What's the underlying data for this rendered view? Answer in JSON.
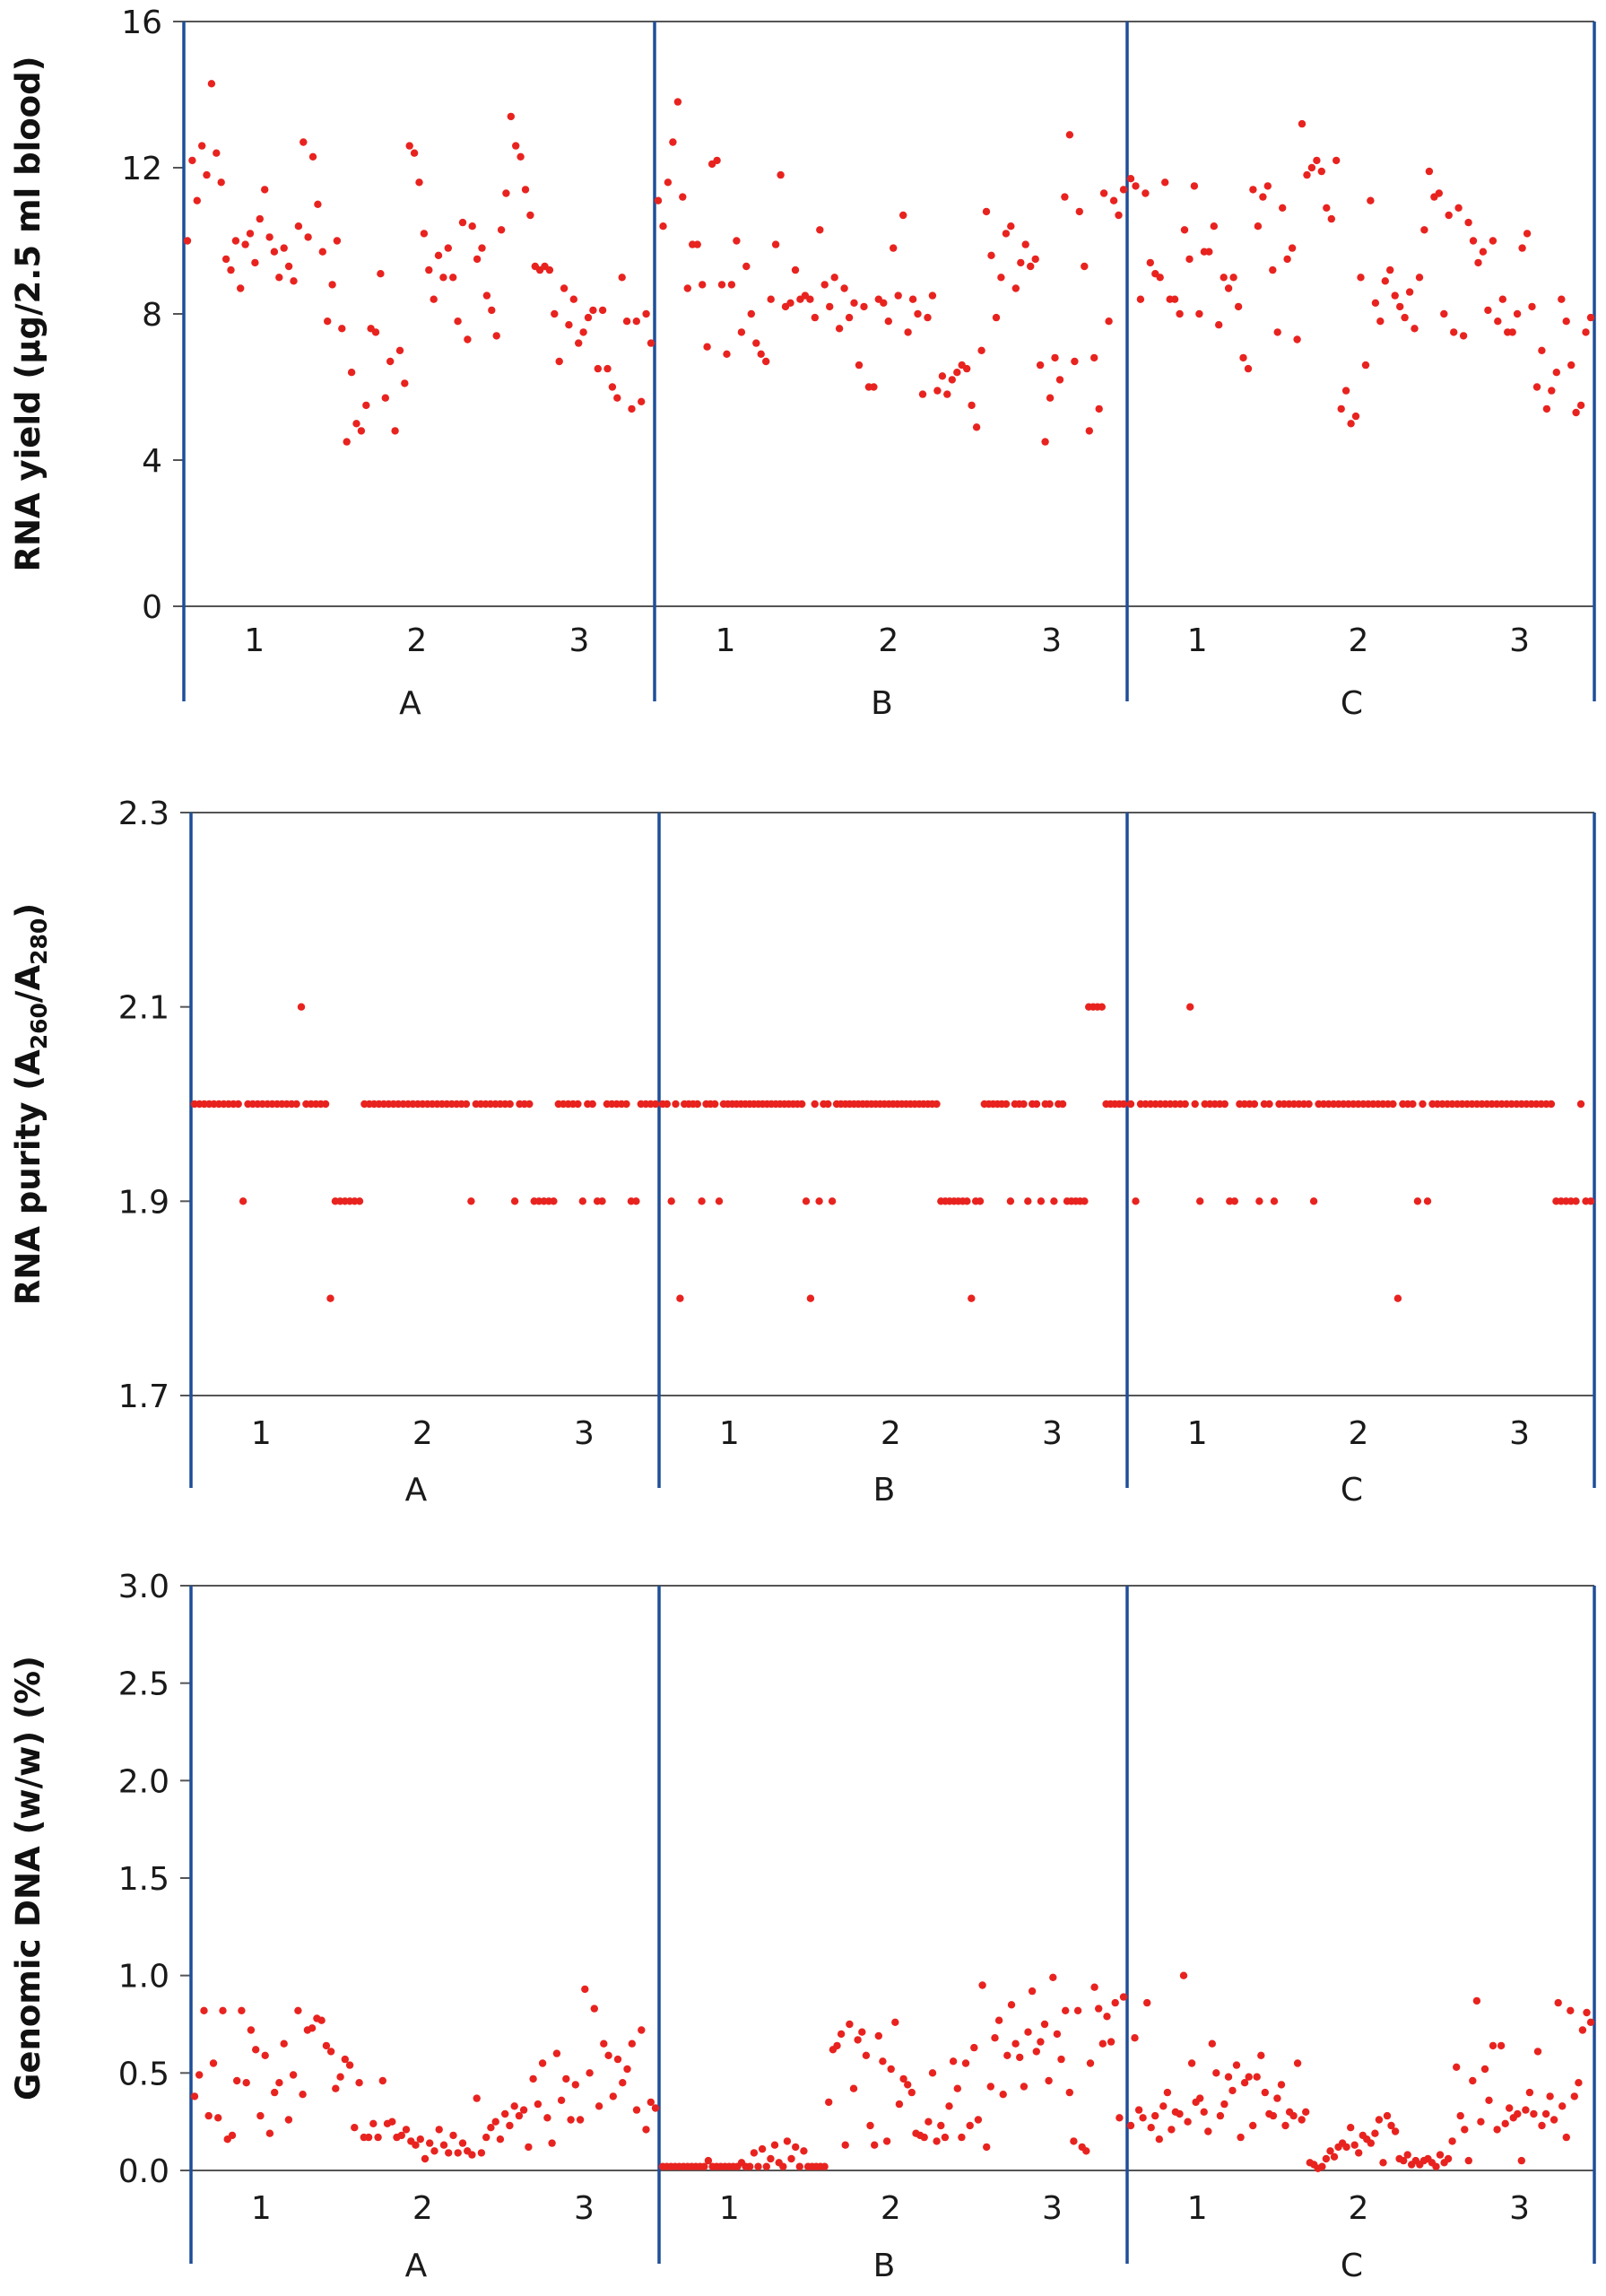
{
  "colors": {
    "point": "#e8231f",
    "divider": "#1f4e99",
    "axis": "#555555"
  },
  "chart_data": [
    {
      "type": "scatter",
      "ylabel": "RNA yield (µg/2.5 ml blood)",
      "ylim": [
        0,
        16
      ],
      "yticks": [
        "0",
        "4",
        "8",
        "12",
        "16"
      ],
      "groups": [
        "A",
        "B",
        "C"
      ],
      "subgroups": [
        "1",
        "2",
        "3"
      ],
      "grid": false,
      "series": [
        {
          "group": "A",
          "values": [
            10.0,
            12.2,
            11.1,
            12.6,
            11.8,
            14.3,
            12.4,
            11.6,
            9.5,
            9.2,
            10.0,
            8.7,
            9.9,
            10.2,
            9.4,
            10.6,
            11.4,
            10.1,
            9.7,
            9.0,
            9.8,
            9.3,
            8.9,
            10.4,
            12.7,
            10.1,
            12.3,
            11.0,
            9.7,
            7.8,
            8.8,
            10.0,
            7.6,
            4.5,
            6.4,
            5.0,
            4.8,
            5.5,
            7.6,
            7.5,
            9.1,
            5.7,
            6.7,
            4.8,
            7.0,
            6.1,
            12.6,
            12.4,
            11.6,
            10.2,
            9.2,
            8.4,
            9.6,
            9.0,
            9.8,
            9.0,
            7.8,
            10.5,
            7.3,
            10.4,
            9.5,
            9.8,
            8.5,
            8.1,
            7.4,
            10.3,
            11.3,
            13.4,
            12.6,
            12.3,
            11.4,
            10.7,
            9.3,
            9.2,
            9.3,
            9.2,
            8.0,
            6.7,
            8.7,
            7.7,
            8.4,
            7.2,
            7.5,
            7.9,
            8.1,
            6.5,
            8.1,
            6.5,
            6.0,
            5.7,
            9.0,
            7.8,
            5.4,
            7.8,
            5.6,
            8.0,
            7.2
          ]
        },
        {
          "group": "B",
          "values": [
            11.1,
            10.4,
            11.6,
            12.7,
            13.8,
            11.2,
            8.7,
            9.9,
            9.9,
            8.8,
            7.1,
            12.1,
            12.2,
            8.8,
            6.9,
            8.8,
            10.0,
            7.5,
            9.3,
            8.0,
            7.2,
            6.9,
            6.7,
            8.4,
            9.9,
            11.8,
            8.2,
            8.3,
            9.2,
            8.4,
            8.5,
            8.4,
            7.9,
            10.3,
            8.8,
            8.2,
            9.0,
            7.6,
            8.7,
            7.9,
            8.3,
            6.6,
            8.2,
            6.0,
            6.0,
            8.4,
            8.3,
            7.8,
            9.8,
            8.5,
            10.7,
            7.5,
            8.4,
            8.0,
            5.8,
            7.9,
            8.5,
            5.9,
            6.3,
            5.8,
            6.2,
            6.4,
            6.6,
            6.5,
            5.5,
            4.9,
            7.0,
            10.8,
            9.6,
            7.9,
            9.0,
            10.2,
            10.4,
            8.7,
            9.4,
            9.9,
            9.3,
            9.5,
            6.6,
            4.5,
            5.7,
            6.8,
            6.2,
            11.2,
            12.9,
            6.7,
            10.8,
            9.3,
            4.8,
            6.8,
            5.4,
            11.3,
            7.8,
            11.1,
            10.7,
            11.4
          ]
        },
        {
          "group": "C",
          "values": [
            11.7,
            11.5,
            8.4,
            11.3,
            9.4,
            9.1,
            9.0,
            11.6,
            8.4,
            8.4,
            8.0,
            10.3,
            9.5,
            11.5,
            8.0,
            9.7,
            9.7,
            10.4,
            7.7,
            9.0,
            8.7,
            9.0,
            8.2,
            6.8,
            6.5,
            11.4,
            10.4,
            11.2,
            11.5,
            9.2,
            7.5,
            10.9,
            9.5,
            9.8,
            7.3,
            13.2,
            11.8,
            12.0,
            12.2,
            11.9,
            10.9,
            10.6,
            12.2,
            5.4,
            5.9,
            5.0,
            5.2,
            9.0,
            6.6,
            11.1,
            8.3,
            7.8,
            8.9,
            9.2,
            8.5,
            8.2,
            7.9,
            8.6,
            7.6,
            9.0,
            10.3,
            11.9,
            11.2,
            11.3,
            8.0,
            10.7,
            7.5,
            10.9,
            7.4,
            10.5,
            10.0,
            9.4,
            9.7,
            8.1,
            10.0,
            7.8,
            8.4,
            7.5,
            7.5,
            8.0,
            9.8,
            10.2,
            8.2,
            6.0,
            7.0,
            5.4,
            5.9,
            6.4,
            8.4,
            7.8,
            6.6,
            5.3,
            5.5,
            7.5,
            7.9
          ]
        }
      ]
    },
    {
      "type": "scatter",
      "ylabel_main": "RNA purity (A",
      "ylabel_sub1": "260",
      "ylabel_mid": "/A",
      "ylabel_sub2": "280",
      "ylabel_end": ")",
      "ylim": [
        1.7,
        2.3
      ],
      "yticks": [
        "1.7",
        "1.9",
        "2.1",
        "2.3"
      ],
      "groups": [
        "A",
        "B",
        "C"
      ],
      "subgroups": [
        "1",
        "2",
        "3"
      ],
      "grid": false,
      "series": [
        {
          "group": "A",
          "values": [
            2.0,
            2.0,
            2.0,
            2.0,
            2.0,
            2.0,
            2.0,
            2.0,
            2.0,
            2.0,
            1.9,
            2.0,
            2.0,
            2.0,
            2.0,
            2.0,
            2.0,
            2.0,
            2.0,
            2.0,
            2.0,
            2.0,
            2.1,
            2.0,
            2.0,
            2.0,
            2.0,
            2.0,
            1.8,
            1.9,
            1.9,
            1.9,
            1.9,
            1.9,
            1.9,
            2.0,
            2.0,
            2.0,
            2.0,
            2.0,
            2.0,
            2.0,
            2.0,
            2.0,
            2.0,
            2.0,
            2.0,
            2.0,
            2.0,
            2.0,
            2.0,
            2.0,
            2.0,
            2.0,
            2.0,
            2.0,
            2.0,
            1.9,
            2.0,
            2.0,
            2.0,
            2.0,
            2.0,
            2.0,
            2.0,
            2.0,
            1.9,
            2.0,
            2.0,
            2.0,
            1.9,
            1.9,
            1.9,
            1.9,
            1.9,
            2.0,
            2.0,
            2.0,
            2.0,
            2.0,
            1.9,
            2.0,
            2.0,
            1.9,
            1.9,
            2.0,
            2.0,
            2.0,
            2.0,
            2.0,
            1.9,
            1.9,
            2.0,
            2.0,
            2.0,
            2.0
          ]
        },
        {
          "group": "B",
          "values": [
            2.0,
            2.0,
            1.9,
            2.0,
            1.8,
            2.0,
            2.0,
            2.0,
            2.0,
            1.9,
            2.0,
            2.0,
            2.0,
            1.9,
            2.0,
            2.0,
            2.0,
            2.0,
            2.0,
            2.0,
            2.0,
            2.0,
            2.0,
            2.0,
            2.0,
            2.0,
            2.0,
            2.0,
            2.0,
            2.0,
            2.0,
            2.0,
            2.0,
            1.9,
            1.8,
            2.0,
            1.9,
            2.0,
            2.0,
            1.9,
            2.0,
            2.0,
            2.0,
            2.0,
            2.0,
            2.0,
            2.0,
            2.0,
            2.0,
            2.0,
            2.0,
            2.0,
            2.0,
            2.0,
            2.0,
            2.0,
            2.0,
            2.0,
            2.0,
            2.0,
            2.0,
            2.0,
            2.0,
            2.0,
            1.9,
            1.9,
            1.9,
            1.9,
            1.9,
            1.9,
            1.9,
            1.8,
            1.9,
            1.9,
            2.0,
            2.0,
            2.0,
            2.0,
            2.0,
            2.0,
            1.9,
            2.0,
            2.0,
            2.0,
            1.9,
            2.0,
            2.0,
            1.9,
            2.0,
            2.0,
            1.9,
            2.0,
            2.0,
            1.9,
            1.9,
            1.9,
            1.9,
            1.9,
            2.1,
            2.1,
            2.1,
            2.1,
            2.0,
            2.0,
            2.0,
            2.0,
            2.0
          ]
        },
        {
          "group": "C",
          "values": [
            2.0,
            1.9,
            2.0,
            2.0,
            2.0,
            2.0,
            2.0,
            2.0,
            2.0,
            2.0,
            2.0,
            2.0,
            2.1,
            2.0,
            1.9,
            2.0,
            2.0,
            2.0,
            2.0,
            2.0,
            1.9,
            1.9,
            2.0,
            2.0,
            2.0,
            2.0,
            1.9,
            2.0,
            2.0,
            1.9,
            2.0,
            2.0,
            2.0,
            2.0,
            2.0,
            2.0,
            2.0,
            1.9,
            2.0,
            2.0,
            2.0,
            2.0,
            2.0,
            2.0,
            2.0,
            2.0,
            2.0,
            2.0,
            2.0,
            2.0,
            2.0,
            2.0,
            2.0,
            2.0,
            1.8,
            2.0,
            2.0,
            2.0,
            1.9,
            2.0,
            1.9,
            2.0,
            2.0,
            2.0,
            2.0,
            2.0,
            2.0,
            2.0,
            2.0,
            2.0,
            2.0,
            2.0,
            2.0,
            2.0,
            2.0,
            2.0,
            2.0,
            2.0,
            2.0,
            2.0,
            2.0,
            2.0,
            2.0,
            2.0,
            2.0,
            2.0,
            1.9,
            1.9,
            1.9,
            1.9,
            1.9,
            2.0,
            1.9,
            1.9
          ]
        }
      ]
    },
    {
      "type": "scatter",
      "ylabel": "Genomic DNA (w/w) (%)",
      "ylim": [
        0,
        3.0
      ],
      "yticks": [
        "0.0",
        "0.5",
        "1.0",
        "1.5",
        "2.0",
        "2.5",
        "3.0"
      ],
      "groups": [
        "A",
        "B",
        "C"
      ],
      "subgroups": [
        "1",
        "2",
        "3"
      ],
      "grid": false,
      "series": [
        {
          "group": "A",
          "values": [
            0.38,
            0.49,
            0.82,
            0.28,
            0.55,
            0.27,
            0.82,
            0.16,
            0.18,
            0.46,
            0.82,
            0.45,
            0.72,
            0.62,
            0.28,
            0.59,
            0.19,
            0.4,
            0.45,
            0.65,
            0.26,
            0.49,
            0.82,
            0.39,
            0.72,
            0.73,
            0.78,
            0.77,
            0.64,
            0.61,
            0.42,
            0.48,
            0.57,
            0.54,
            0.22,
            0.45,
            0.17,
            0.17,
            0.24,
            0.17,
            0.46,
            0.24,
            0.25,
            0.17,
            0.18,
            0.21,
            0.15,
            0.13,
            0.16,
            0.06,
            0.14,
            0.1,
            0.21,
            0.13,
            0.09,
            0.18,
            0.09,
            0.14,
            0.1,
            0.08,
            0.37,
            0.09,
            0.17,
            0.22,
            0.25,
            0.16,
            0.29,
            0.23,
            0.33,
            0.28,
            0.31,
            0.12,
            0.47,
            0.34,
            0.55,
            0.27,
            0.14,
            0.6,
            0.36,
            0.47,
            0.26,
            0.44,
            0.26,
            0.93,
            0.5,
            0.83,
            0.33,
            0.65,
            0.59,
            0.38,
            0.57,
            0.45,
            0.52,
            0.65,
            0.31,
            0.72,
            0.21,
            0.35,
            0.32
          ]
        },
        {
          "group": "B",
          "values": [
            0.02,
            0.02,
            0.02,
            0.02,
            0.02,
            0.02,
            0.02,
            0.02,
            0.02,
            0.02,
            0.02,
            0.05,
            0.02,
            0.02,
            0.02,
            0.02,
            0.02,
            0.02,
            0.02,
            0.04,
            0.02,
            0.02,
            0.09,
            0.02,
            0.11,
            0.02,
            0.06,
            0.13,
            0.04,
            0.02,
            0.15,
            0.06,
            0.12,
            0.02,
            0.1,
            0.02,
            0.02,
            0.02,
            0.02,
            0.02,
            0.35,
            0.62,
            0.64,
            0.7,
            0.13,
            0.75,
            0.42,
            0.67,
            0.71,
            0.59,
            0.23,
            0.13,
            0.69,
            0.56,
            0.15,
            0.52,
            0.76,
            0.34,
            0.47,
            0.44,
            0.4,
            0.19,
            0.18,
            0.17,
            0.25,
            0.5,
            0.15,
            0.23,
            0.17,
            0.33,
            0.56,
            0.42,
            0.17,
            0.55,
            0.23,
            0.63,
            0.26,
            0.95,
            0.12,
            0.43,
            0.68,
            0.77,
            0.39,
            0.59,
            0.85,
            0.65,
            0.58,
            0.43,
            0.71,
            0.92,
            0.61,
            0.66,
            0.75,
            0.46,
            0.99,
            0.7,
            0.57,
            0.82,
            0.4,
            0.15,
            0.82,
            0.12,
            0.1,
            0.55,
            0.94,
            0.83,
            0.65,
            0.79,
            0.66,
            0.86,
            0.27,
            0.89
          ]
        },
        {
          "group": "C",
          "values": [
            0.23,
            0.68,
            0.31,
            0.27,
            0.86,
            0.22,
            0.28,
            0.16,
            0.33,
            0.4,
            0.21,
            0.3,
            0.29,
            1.0,
            0.25,
            0.55,
            0.35,
            0.37,
            0.3,
            0.2,
            0.65,
            0.5,
            0.28,
            0.34,
            0.48,
            0.41,
            0.54,
            0.17,
            0.45,
            0.48,
            0.23,
            0.48,
            0.59,
            0.4,
            0.29,
            0.28,
            0.37,
            0.44,
            0.23,
            0.3,
            0.28,
            0.55,
            0.26,
            0.3,
            0.04,
            0.03,
            0.01,
            0.02,
            0.06,
            0.1,
            0.07,
            0.12,
            0.14,
            0.12,
            0.22,
            0.13,
            0.09,
            0.18,
            0.16,
            0.14,
            0.19,
            0.26,
            0.04,
            0.28,
            0.23,
            0.2,
            0.06,
            0.05,
            0.08,
            0.03,
            0.05,
            0.03,
            0.05,
            0.06,
            0.04,
            0.02,
            0.08,
            0.04,
            0.06,
            0.15,
            0.53,
            0.28,
            0.21,
            0.05,
            0.46,
            0.87,
            0.25,
            0.52,
            0.36,
            0.64,
            0.21,
            0.64,
            0.24,
            0.32,
            0.27,
            0.29,
            0.05,
            0.31,
            0.4,
            0.29,
            0.61,
            0.23,
            0.29,
            0.38,
            0.26,
            0.86,
            0.33,
            0.17,
            0.82,
            0.38,
            0.45,
            0.72,
            0.81,
            0.76
          ]
        }
      ]
    }
  ]
}
